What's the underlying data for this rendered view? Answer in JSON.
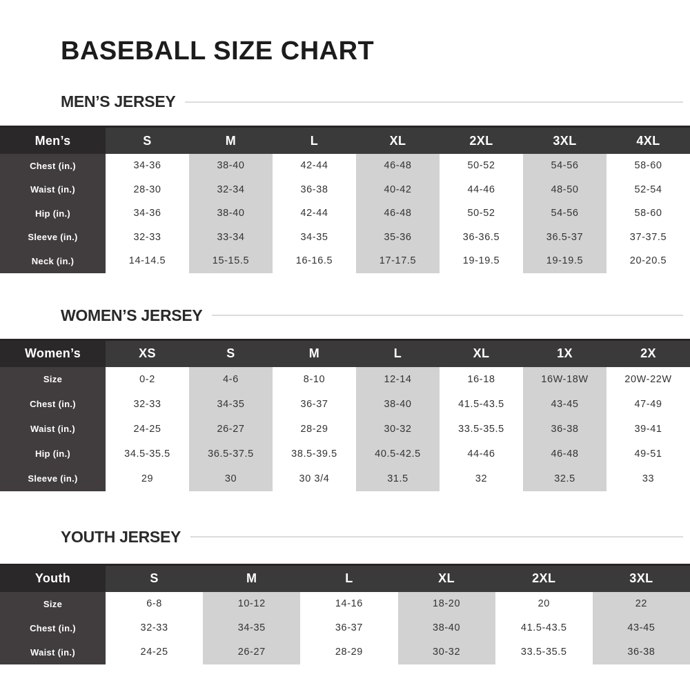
{
  "page_title": "BASEBALL SIZE CHART",
  "colors": {
    "title_text": "#1c1c1c",
    "header_bg": "#3b3a3a",
    "corner_bg": "#2b2829",
    "label_bg": "#413d3e",
    "stripe_bg": "#d2d2d2",
    "rule_line": "#dcdcdc",
    "cell_text": "#333333"
  },
  "sections": [
    {
      "heading": "MEN’S JERSEY",
      "corner": "Men’s",
      "columns": [
        "S",
        "M",
        "L",
        "XL",
        "2XL",
        "3XL",
        "4XL"
      ],
      "rows": [
        {
          "label": "Chest (in.)",
          "values": [
            "34-36",
            "38-40",
            "42-44",
            "46-48",
            "50-52",
            "54-56",
            "58-60"
          ]
        },
        {
          "label": "Waist (in.)",
          "values": [
            "28-30",
            "32-34",
            "36-38",
            "40-42",
            "44-46",
            "48-50",
            "52-54"
          ]
        },
        {
          "label": "Hip (in.)",
          "values": [
            "34-36",
            "38-40",
            "42-44",
            "46-48",
            "50-52",
            "54-56",
            "58-60"
          ]
        },
        {
          "label": "Sleeve (in.)",
          "values": [
            "32-33",
            "33-34",
            "34-35",
            "35-36",
            "36-36.5",
            "36.5-37",
            "37-37.5"
          ]
        },
        {
          "label": "Neck (in.)",
          "values": [
            "14-14.5",
            "15-15.5",
            "16-16.5",
            "17-17.5",
            "19-19.5",
            "19-19.5",
            "20-20.5"
          ]
        }
      ]
    },
    {
      "heading": "WOMEN’S JERSEY",
      "corner": "Women’s",
      "columns": [
        "XS",
        "S",
        "M",
        "L",
        "XL",
        "1X",
        "2X"
      ],
      "rows": [
        {
          "label": "Size",
          "values": [
            "0-2",
            "4-6",
            "8-10",
            "12-14",
            "16-18",
            "16W-18W",
            "20W-22W"
          ]
        },
        {
          "label": "Chest (in.)",
          "values": [
            "32-33",
            "34-35",
            "36-37",
            "38-40",
            "41.5-43.5",
            "43-45",
            "47-49"
          ]
        },
        {
          "label": "Waist (in.)",
          "values": [
            "24-25",
            "26-27",
            "28-29",
            "30-32",
            "33.5-35.5",
            "36-38",
            "39-41"
          ]
        },
        {
          "label": "Hip (in.)",
          "values": [
            "34.5-35.5",
            "36.5-37.5",
            "38.5-39.5",
            "40.5-42.5",
            "44-46",
            "46-48",
            "49-51"
          ]
        },
        {
          "label": "Sleeve (in.)",
          "values": [
            "29",
            "30",
            "30 3/4",
            "31.5",
            "32",
            "32.5",
            "33"
          ]
        }
      ]
    },
    {
      "heading": "YOUTH JERSEY",
      "corner": "Youth",
      "columns": [
        "S",
        "M",
        "L",
        "XL",
        "2XL",
        "3XL"
      ],
      "rows": [
        {
          "label": "Size",
          "values": [
            "6-8",
            "10-12",
            "14-16",
            "18-20",
            "20",
            "22"
          ]
        },
        {
          "label": "Chest (in.)",
          "values": [
            "32-33",
            "34-35",
            "36-37",
            "38-40",
            "41.5-43.5",
            "43-45"
          ]
        },
        {
          "label": "Waist (in.)",
          "values": [
            "24-25",
            "26-27",
            "28-29",
            "30-32",
            "33.5-35.5",
            "36-38"
          ]
        }
      ]
    }
  ]
}
